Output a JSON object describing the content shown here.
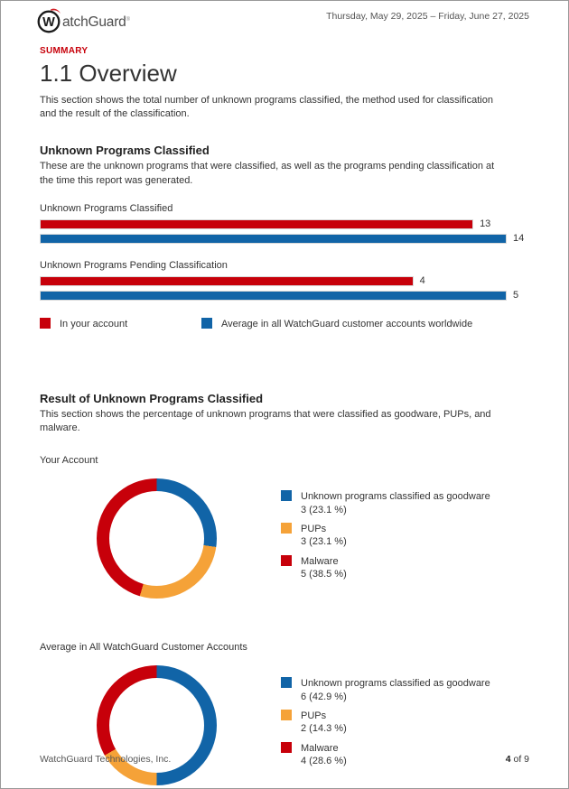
{
  "header": {
    "brand_w": "W",
    "brand_rest": "atchGuard",
    "brand_reg": "®",
    "date_range": "Thursday, May 29, 2025 – Friday, June 27, 2025"
  },
  "summary_label": "SUMMARY",
  "title": "1.1 Overview",
  "intro": "This section shows the total number of unknown programs classified, the method used for classification and the result of the classification.",
  "sections": {
    "classified": {
      "heading": "Unknown Programs Classified",
      "description": "These are the unknown programs that were classified, as well as the programs pending classification at the time this report was generated."
    },
    "result": {
      "heading": "Result of Unknown Programs Classified",
      "description": "This section shows the percentage of unknown programs that were classified as goodware, PUPs, and malware."
    }
  },
  "colors": {
    "red": "#c7000a",
    "blue": "#1164a7",
    "orange": "#f5a238"
  },
  "chart_data": [
    {
      "type": "bar",
      "title": "Unknown Programs Classified",
      "orientation": "horizontal",
      "xlim": [
        0,
        14
      ],
      "series": [
        {
          "name": "In your account",
          "value": 13,
          "color": "#c7000a"
        },
        {
          "name": "Average in all WatchGuard customer accounts worldwide",
          "value": 14,
          "color": "#1164a7"
        }
      ]
    },
    {
      "type": "bar",
      "title": "Unknown Programs Pending Classification",
      "orientation": "horizontal",
      "xlim": [
        0,
        5
      ],
      "series": [
        {
          "name": "In your account",
          "value": 4,
          "color": "#c7000a"
        },
        {
          "name": "Average in all WatchGuard customer accounts worldwide",
          "value": 5,
          "color": "#1164a7"
        }
      ]
    },
    {
      "type": "donut",
      "title": "Your Account",
      "segments": [
        {
          "label": "Unknown programs classified as goodware",
          "value": 3,
          "pct_label": "3 (23.1 %)",
          "color": "#1164a7"
        },
        {
          "label": "PUPs",
          "value": 3,
          "pct_label": "3 (23.1 %)",
          "color": "#f5a238"
        },
        {
          "label": "Malware",
          "value": 5,
          "pct_label": "5 (38.5 %)",
          "color": "#c7000a"
        }
      ]
    },
    {
      "type": "donut",
      "title": "Average in All WatchGuard Customer Accounts",
      "segments": [
        {
          "label": "Unknown programs classified as goodware",
          "value": 6,
          "pct_label": "6 (42.9 %)",
          "color": "#1164a7"
        },
        {
          "label": "PUPs",
          "value": 2,
          "pct_label": "2 (14.3 %)",
          "color": "#f5a238"
        },
        {
          "label": "Malware",
          "value": 4,
          "pct_label": "4 (28.6 %)",
          "color": "#c7000a"
        }
      ]
    }
  ],
  "bar_legend": [
    {
      "label": "In your account",
      "color": "#c7000a"
    },
    {
      "label": "Average in all WatchGuard customer accounts worldwide",
      "color": "#1164a7"
    }
  ],
  "footer": {
    "company": "WatchGuard Technologies, Inc.",
    "page_number": "4",
    "page_suffix": " of 9"
  }
}
